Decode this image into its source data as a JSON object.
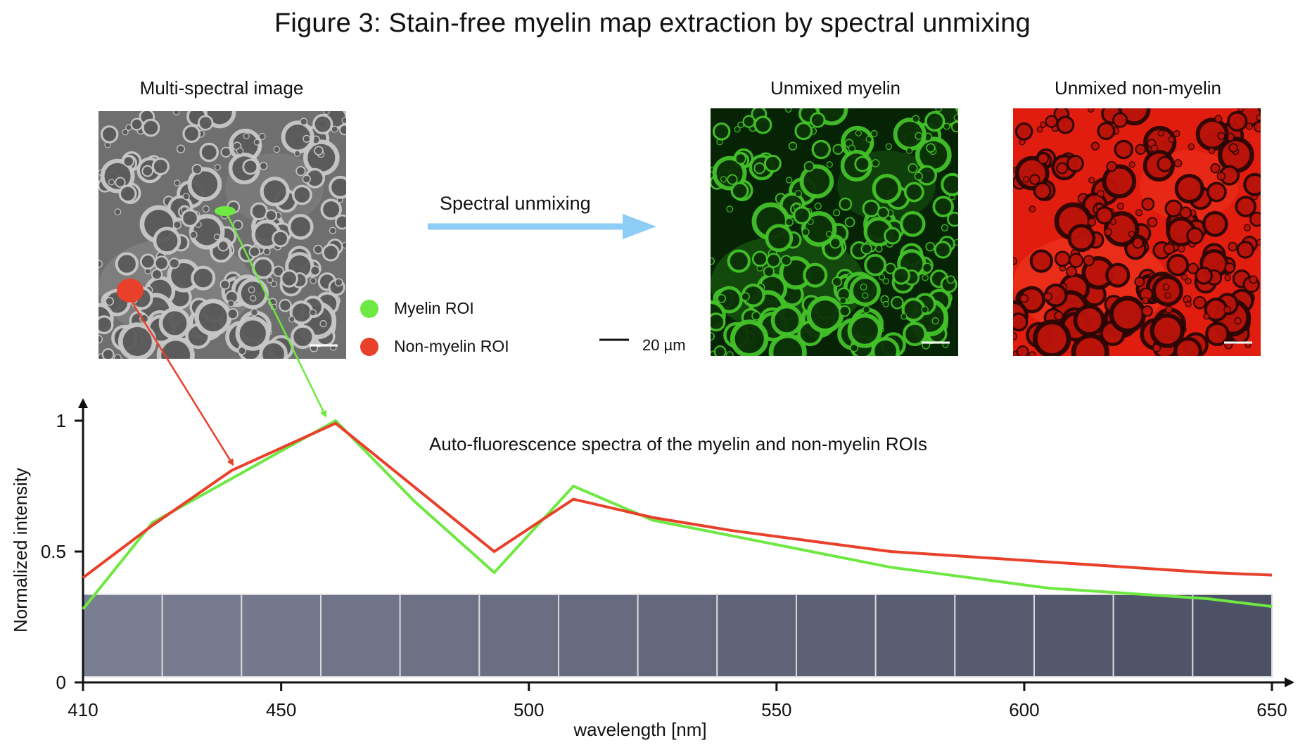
{
  "figure": {
    "title": "Figure 3: Stain-free myelin map extraction by spectral unmixing"
  },
  "panels": {
    "multispectral_label": "Multi-spectral image",
    "unmixed_myelin_label": "Unmixed myelin",
    "unmixed_nonmyelin_label": "Unmixed non-myelin",
    "process_label": "Spectral unmixing",
    "scale_bar_label": "20 µm"
  },
  "legend": [
    {
      "label": "Myelin ROI",
      "color": "#6ee842"
    },
    {
      "label": "Non-myelin ROI",
      "color": "#e8402a"
    }
  ],
  "colors": {
    "myelin": "#6ee842",
    "nonmyelin": "#e8402a",
    "arrow": "#8ecdf5",
    "myelin_map_bg": "#0a2a05",
    "nonmyelin_map_bg": "#e11d0f",
    "gray_bg": "#707070"
  },
  "chart_data": {
    "type": "line",
    "title": "Auto-fluorescence spectra of the myelin and non-myelin ROIs",
    "xlabel": "wavelength [nm]",
    "ylabel": "Normalized intensity",
    "xlim": [
      410,
      650
    ],
    "ylim": [
      0,
      1
    ],
    "xticks": [
      410,
      450,
      500,
      550,
      600,
      650
    ],
    "yticks": [
      0,
      0.5,
      1
    ],
    "grid": false,
    "series": [
      {
        "name": "Myelin ROI",
        "color": "#6ee842",
        "x": [
          410,
          424,
          461,
          477,
          493,
          509,
          525,
          541,
          557,
          573,
          589,
          605,
          621,
          637,
          650
        ],
        "y": [
          0.28,
          0.61,
          1.0,
          0.69,
          0.42,
          0.75,
          0.62,
          0.56,
          0.5,
          0.44,
          0.4,
          0.36,
          0.34,
          0.32,
          0.29
        ]
      },
      {
        "name": "Non-myelin ROI",
        "color": "#e8402a",
        "x": [
          410,
          424,
          440,
          461,
          493,
          509,
          525,
          541,
          557,
          573,
          589,
          605,
          621,
          637,
          650
        ],
        "y": [
          0.4,
          0.6,
          0.81,
          0.99,
          0.5,
          0.7,
          0.63,
          0.58,
          0.54,
          0.5,
          0.48,
          0.46,
          0.44,
          0.42,
          0.41
        ]
      }
    ]
  }
}
